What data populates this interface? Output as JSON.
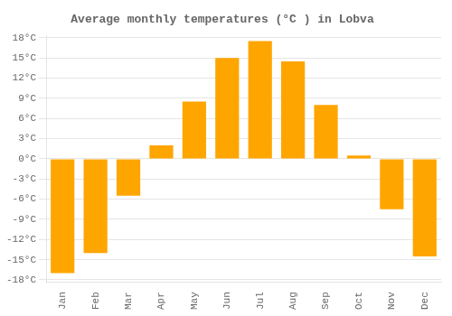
{
  "chart_data": {
    "type": "bar",
    "title": "Average monthly temperatures (°C ) in Lobva",
    "categories": [
      "Jan",
      "Feb",
      "Mar",
      "Apr",
      "May",
      "Jun",
      "Jul",
      "Aug",
      "Sep",
      "Oct",
      "Nov",
      "Dec"
    ],
    "values": [
      -17,
      -14,
      -5.5,
      2,
      8.5,
      15,
      17.5,
      14.5,
      8,
      0.5,
      -7.5,
      -14.5
    ],
    "color": "#FFA500",
    "ylim": [
      -18.3,
      18.3
    ],
    "yticks": [
      {
        "value": -18,
        "label": "-18°C"
      },
      {
        "value": -15,
        "label": "-15°C"
      },
      {
        "value": -12,
        "label": "-12°C"
      },
      {
        "value": -9,
        "label": "-9°C"
      },
      {
        "value": -6,
        "label": "-6°C"
      },
      {
        "value": -3,
        "label": "-3°C"
      },
      {
        "value": 0,
        "label": "0°C"
      },
      {
        "value": 3,
        "label": "3°C"
      },
      {
        "value": 6,
        "label": "6°C"
      },
      {
        "value": 9,
        "label": "9°C"
      },
      {
        "value": 12,
        "label": "12°C"
      },
      {
        "value": 15,
        "label": "15°C"
      },
      {
        "value": 18,
        "label": "18°C"
      }
    ],
    "grid": true
  }
}
